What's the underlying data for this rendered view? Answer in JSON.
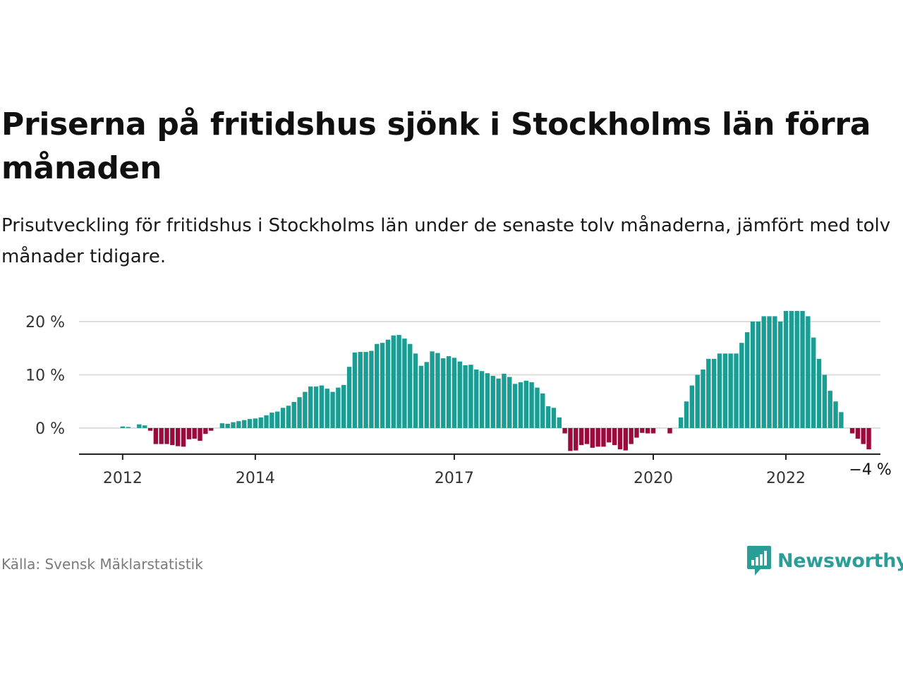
{
  "title": "Priserna på fritidshus sjönk i Stockholms län förra månaden",
  "subtitle": "Prisutveckling för fritidshus i Stockholms län under de senaste tolv månaderna, jämfört med tolv månader tidigare.",
  "source": "Källa: Svensk Mäklarstatistik",
  "logo_text": "Newsworthy",
  "colors": {
    "positive": "#1a9e94",
    "negative": "#9c0a3d",
    "grid": "#dddddd",
    "axis": "#222222",
    "brand": "#2a9d97"
  },
  "chart_data": {
    "type": "bar",
    "unit": "%",
    "x_start": "2011-12",
    "x_end": "2023-05",
    "ylim": [
      -5,
      22
    ],
    "y_ticks": [
      0,
      10,
      20
    ],
    "y_tick_labels": [
      "0 %",
      "10 %",
      "20 %"
    ],
    "x_ticks": [
      "2012-01",
      "2014-01",
      "2017-01",
      "2020-01",
      "2022-01"
    ],
    "x_tick_labels": [
      "2012",
      "2014",
      "2017",
      "2020",
      "2022"
    ],
    "last_value_label": "−4 %",
    "grid": true,
    "series": [
      {
        "values": [
          0,
          0.3,
          0.2,
          0,
          0.7,
          0.5,
          -0.5,
          -3,
          -3,
          -3,
          -3.2,
          -3.4,
          -3.5,
          -2.1,
          -2,
          -2.4,
          -1.1,
          -0.5,
          0,
          0.9,
          0.8,
          1.1,
          1.3,
          1.5,
          1.7,
          1.8,
          2,
          2.4,
          2.9,
          3.1,
          3.8,
          4.2,
          4.9,
          5.8,
          6.8,
          7.8,
          7.8,
          8,
          7.4,
          6.8,
          7.6,
          8.1,
          11.5,
          14.2,
          14.3,
          14.3,
          14.5,
          15.8,
          16,
          16.6,
          17.4,
          17.5,
          16.8,
          15.8,
          14,
          11.7,
          12.4,
          14.4,
          14.1,
          13.1,
          13.5,
          13.2,
          12.5,
          11.8,
          11.9,
          11,
          10.7,
          10.3,
          9.8,
          9.3,
          10.2,
          9.6,
          8.3,
          8.6,
          8.9,
          8.6,
          7.6,
          6.5,
          4.1,
          3.8,
          2,
          -1,
          -4.3,
          -4.2,
          -3.2,
          -3,
          -3.7,
          -3.5,
          -3.5,
          -2.7,
          -3.2,
          -4,
          -4.2,
          -3,
          -1.8,
          -0.9,
          -1,
          -1,
          0,
          0,
          -1,
          0,
          2,
          5,
          8,
          10,
          11,
          13,
          13,
          14,
          14,
          14,
          14,
          16,
          18,
          20,
          20,
          21,
          21,
          21,
          20,
          22,
          22,
          22,
          22,
          21,
          17,
          13,
          10,
          7,
          5,
          3,
          0,
          -1,
          -2,
          -3,
          -4
        ]
      }
    ]
  }
}
